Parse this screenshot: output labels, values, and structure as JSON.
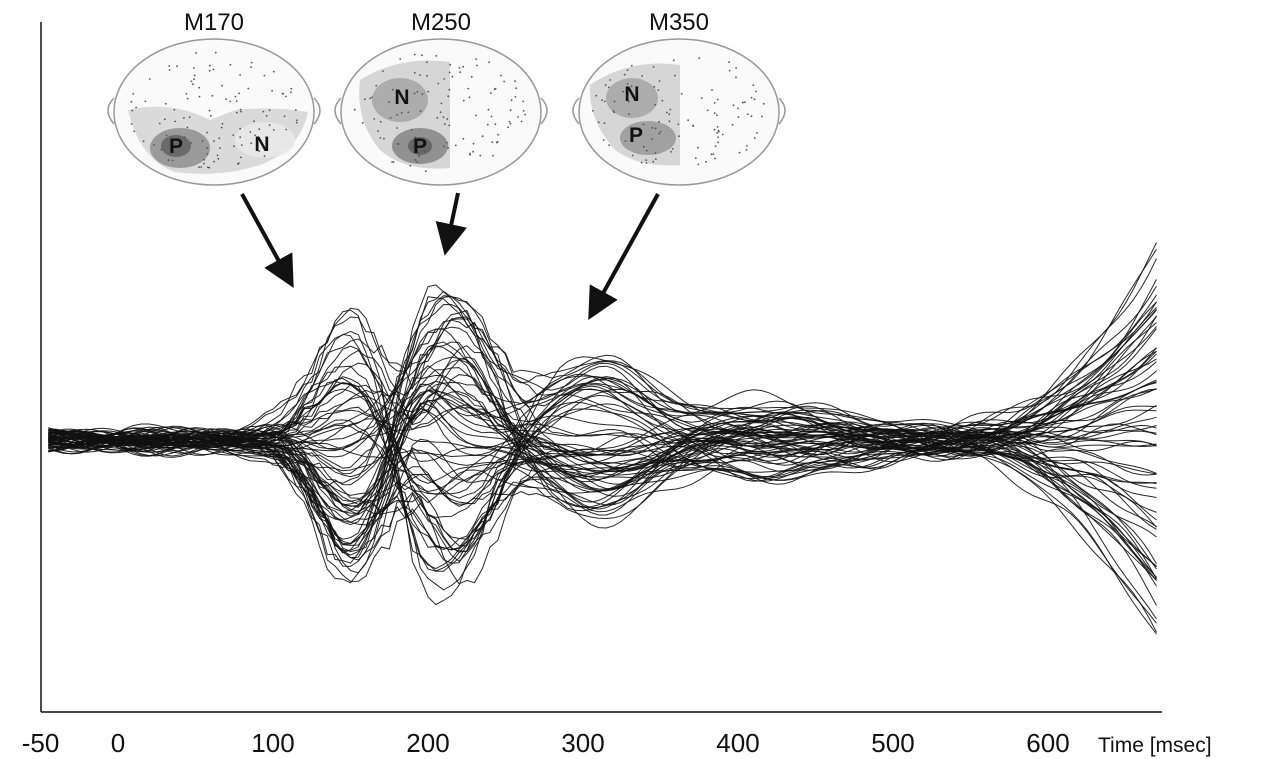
{
  "chart_data": {
    "type": "line",
    "description_free": true,
    "xlabel": "Time [msec]",
    "x_tick_labels": [
      "-50",
      "0",
      "100",
      "200",
      "300",
      "400",
      "500",
      "600"
    ],
    "x_ticks": [
      -50,
      0,
      100,
      200,
      300,
      400,
      500,
      600
    ],
    "xlim": [
      -60,
      680
    ],
    "grid": false,
    "legend": "none",
    "trace_color": "#111111",
    "n_traces": 70,
    "trace_sample_step_ms": 5,
    "components": [
      {
        "label": "M170",
        "latency_ms": 150,
        "poles": [
          "P",
          "N"
        ]
      },
      {
        "label": "M250",
        "latency_ms": 215,
        "poles": [
          "N",
          "P"
        ]
      },
      {
        "label": "M350",
        "latency_ms": 310,
        "poles": [
          "N",
          "P"
        ]
      }
    ]
  }
}
